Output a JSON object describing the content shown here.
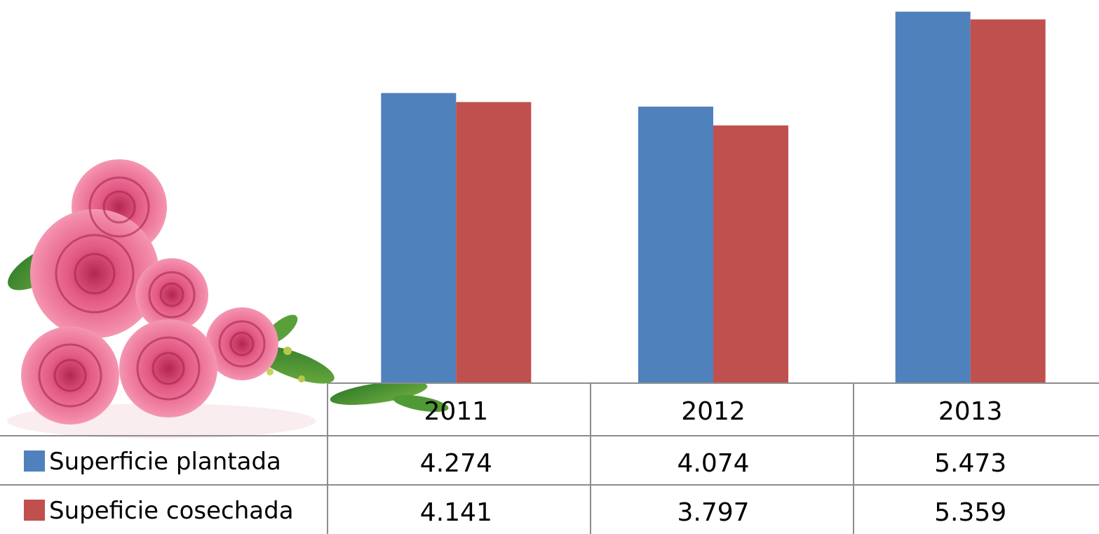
{
  "chart_data": {
    "type": "bar",
    "categories": [
      "2011",
      "2012",
      "2013"
    ],
    "series": [
      {
        "name": "Superficie plantada",
        "color": "#4F81BD",
        "values": [
          4274,
          4074,
          5473
        ],
        "labels": [
          "4.274",
          "4.074",
          "5.473"
        ]
      },
      {
        "name": "Supeficie cosechada",
        "color": "#C0504D",
        "values": [
          4141,
          3797,
          5359
        ],
        "labels": [
          "4.141",
          "3.797",
          "5.359"
        ]
      }
    ],
    "title": "",
    "xlabel": "",
    "ylabel": "",
    "ylim": [
      0,
      5500
    ],
    "grid": false,
    "legend": "data-table-left",
    "data_table": true
  },
  "decoration": {
    "image": "pink-roses-bouquet"
  }
}
